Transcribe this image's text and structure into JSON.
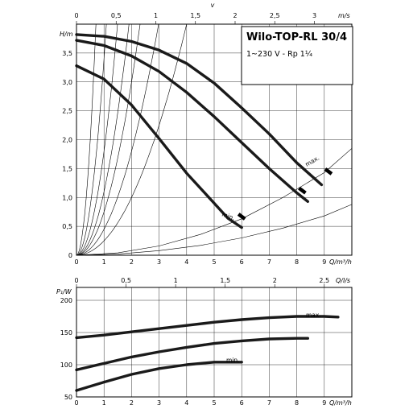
{
  "chart_data": [
    {
      "type": "line",
      "title": "Wilo-TOP-RL 30/4",
      "subtitle": "1~230 V - Rp 1¼",
      "xlabel": "Q/m³/h",
      "ylabel": "H/m",
      "top_axis_label": "v",
      "top_axis_unit": "m/s",
      "xlim": [
        0,
        10
      ],
      "ylim": [
        0,
        4
      ],
      "x_ticks": [
        0,
        1,
        2,
        3,
        4,
        5,
        6,
        7,
        8,
        9
      ],
      "y_ticks": [
        0,
        0.5,
        1.0,
        1.5,
        2.0,
        2.5,
        3.0,
        3.5
      ],
      "y_tick_labels": [
        "0",
        "0,5",
        "1,0",
        "1,5",
        "2,0",
        "2,5",
        "3,0",
        "3,5"
      ],
      "top_ticks": [
        0,
        0.5,
        1,
        1.5,
        2,
        2.5,
        3
      ],
      "top_tick_labels": [
        "0",
        "0,5",
        "1",
        "1,5",
        "2",
        "2,5",
        "3"
      ],
      "top_scale_q_per_v": 2.88,
      "grid": true,
      "series": [
        {
          "name": "max.",
          "x": [
            0,
            1,
            2,
            3,
            4,
            5,
            6,
            7,
            8,
            8.9
          ],
          "y": [
            3.82,
            3.79,
            3.7,
            3.55,
            3.32,
            2.98,
            2.55,
            2.1,
            1.6,
            1.22
          ]
        },
        {
          "name": "",
          "x": [
            0,
            1,
            2,
            3,
            4,
            5,
            6,
            7,
            8,
            8.4
          ],
          "y": [
            3.72,
            3.63,
            3.45,
            3.18,
            2.82,
            2.4,
            1.95,
            1.5,
            1.08,
            0.93
          ]
        },
        {
          "name": "min.",
          "x": [
            0,
            1,
            2,
            3,
            4,
            5,
            5.5,
            6
          ],
          "y": [
            3.28,
            3.05,
            2.6,
            2.02,
            1.42,
            0.9,
            0.64,
            0.48
          ]
        }
      ],
      "system_curves_k": [
        0.25,
        0.45,
        0.75,
        1.1,
        1.8,
        3.4,
        8
      ],
      "aux_curves": [
        {
          "x": [
            0,
            1.5,
            3,
            4.5,
            6,
            7.5,
            9,
            10.2
          ],
          "y": [
            0,
            0.02,
            0.08,
            0.17,
            0.3,
            0.47,
            0.68,
            0.88
          ]
        },
        {
          "x": [
            0,
            1.5,
            3,
            4.5,
            6,
            7.5,
            9,
            10.2
          ],
          "y": [
            0,
            0.04,
            0.16,
            0.36,
            0.63,
            1.0,
            1.43,
            1.85
          ]
        }
      ],
      "markers": [
        {
          "x": 9.15,
          "y": 1.45
        },
        {
          "x": 8.2,
          "y": 1.12
        },
        {
          "x": 6.0,
          "y": 0.67
        }
      ],
      "labels": {
        "max": "max.",
        "min": "min."
      }
    },
    {
      "type": "line",
      "xlabel": "Q/m³/h",
      "ylabel": "P₁/W",
      "top_axis_unit": "Q/l/s",
      "xlim": [
        0,
        10
      ],
      "ylim": [
        50,
        220
      ],
      "x_ticks": [
        0,
        1,
        2,
        3,
        4,
        5,
        6,
        7,
        8,
        9
      ],
      "y_ticks": [
        50,
        100,
        150,
        200
      ],
      "top_ticks": [
        0,
        0.5,
        1,
        1.5,
        2,
        2.5
      ],
      "top_tick_labels": [
        "0",
        "0,5",
        "1",
        "1,5",
        "2",
        "2,5"
      ],
      "grid": true,
      "series": [
        {
          "name": "max.",
          "x": [
            0,
            1,
            2,
            3,
            4,
            5,
            6,
            7,
            8,
            9,
            9.5
          ],
          "y": [
            142,
            146,
            151,
            156,
            161,
            166,
            170,
            173,
            175,
            175,
            174
          ]
        },
        {
          "name": "",
          "x": [
            0,
            1,
            2,
            3,
            4,
            5,
            6,
            7,
            8,
            8.4
          ],
          "y": [
            92,
            102,
            112,
            120,
            127,
            133,
            137,
            140,
            141,
            141
          ]
        },
        {
          "name": "min.",
          "x": [
            0,
            1,
            2,
            3,
            4,
            5,
            6
          ],
          "y": [
            60,
            73,
            85,
            94,
            100,
            104,
            104
          ]
        }
      ],
      "labels": {
        "max": "max.",
        "min": "min."
      }
    }
  ]
}
